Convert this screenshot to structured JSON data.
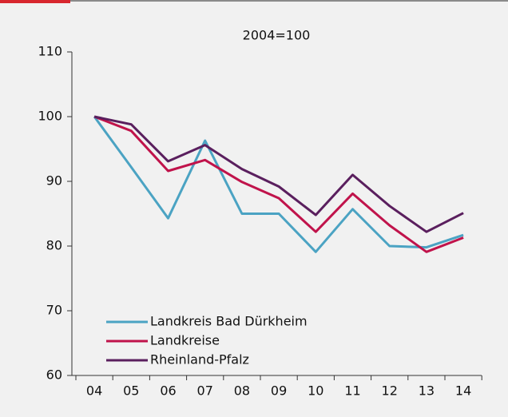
{
  "chart_data": {
    "type": "line",
    "title": "2004=100",
    "categories": [
      "04",
      "05",
      "06",
      "07",
      "08",
      "09",
      "10",
      "11",
      "12",
      "13",
      "14"
    ],
    "series": [
      {
        "name": "Landkreis Bad Dürkheim",
        "color": "#4ba3c3",
        "values": [
          100,
          92.2,
          84.3,
          96.3,
          85,
          85,
          79.1,
          85.7,
          80,
          79.8,
          81.7
        ]
      },
      {
        "name": "Landkreise",
        "color": "#c0134b",
        "values": [
          100,
          97.8,
          91.6,
          93.3,
          89.9,
          87.4,
          82.2,
          88.1,
          83.2,
          79.1,
          81.3
        ]
      },
      {
        "name": "Rheinland-Pfalz",
        "color": "#5a1f5e",
        "values": [
          100,
          98.8,
          93.1,
          95.6,
          91.9,
          89.2,
          84.8,
          91.0,
          86.2,
          82.2,
          85.1
        ]
      }
    ],
    "ylim": [
      60,
      110
    ],
    "yticks": [
      60,
      70,
      80,
      90,
      100,
      110
    ],
    "legend": "lower left"
  }
}
